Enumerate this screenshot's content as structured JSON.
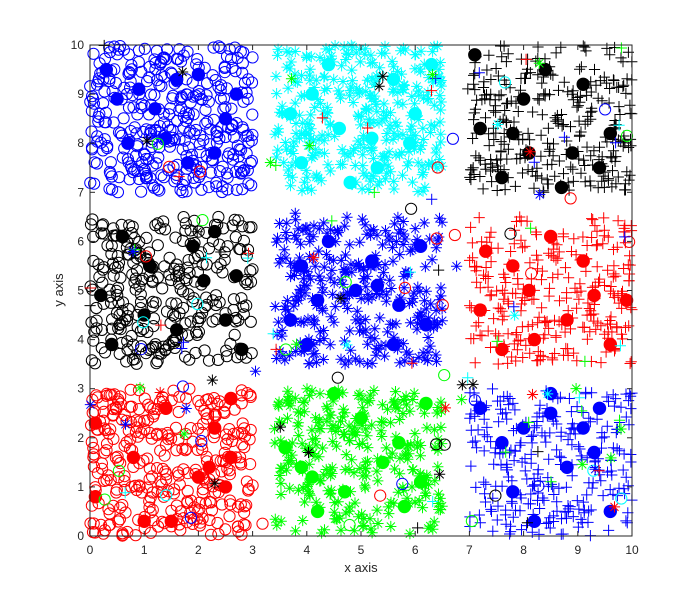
{
  "chart_data": {
    "type": "scatter",
    "xlabel": "x axis",
    "ylabel": "y axis",
    "xlim": [
      0,
      10
    ],
    "ylim": [
      0,
      10
    ],
    "xticks": [
      "0",
      "1",
      "2",
      "3",
      "4",
      "5",
      "6",
      "7",
      "8",
      "9",
      "10"
    ],
    "yticks": [
      "0",
      "1",
      "2",
      "3",
      "4",
      "5",
      "6",
      "7",
      "8",
      "9",
      "10"
    ],
    "grid": false,
    "legend": "none",
    "box": true,
    "colors": {
      "blue": "#0000ff",
      "cyan": "#00ffff",
      "black": "#000000",
      "red": "#ff0000",
      "green": "#00ff00"
    },
    "clusters": [
      {
        "region": {
          "x": [
            0,
            3
          ],
          "y": [
            7,
            10
          ]
        },
        "color": "blue",
        "marker": "circle-open",
        "count": 360,
        "centers": [
          [
            0.3,
            9.5
          ],
          [
            0.7,
            8.0
          ],
          [
            1.2,
            8.7
          ],
          [
            1.8,
            7.6
          ],
          [
            1.6,
            9.3
          ],
          [
            2.5,
            8.5
          ],
          [
            0.9,
            9.1
          ],
          [
            2.0,
            9.4
          ],
          [
            2.3,
            7.8
          ],
          [
            0.5,
            8.9
          ],
          [
            1.4,
            8.1
          ],
          [
            2.7,
            9.0
          ]
        ]
      },
      {
        "region": {
          "x": [
            3.4,
            6.5
          ],
          "y": [
            7,
            10
          ]
        },
        "color": "cyan",
        "marker": "asterisk",
        "count": 330,
        "centers": [
          [
            3.7,
            8.6
          ],
          [
            4.1,
            9.0
          ],
          [
            4.6,
            8.3
          ],
          [
            5.2,
            8.1
          ],
          [
            5.9,
            8.0
          ],
          [
            6.3,
            9.6
          ],
          [
            4.8,
            7.2
          ],
          [
            5.6,
            9.3
          ],
          [
            3.9,
            7.6
          ],
          [
            4.4,
            9.6
          ],
          [
            6.0,
            8.6
          ],
          [
            5.3,
            7.5
          ]
        ]
      },
      {
        "region": {
          "x": [
            7,
            10
          ],
          "y": [
            7,
            10
          ]
        },
        "color": "black",
        "marker": "plus",
        "count": 300,
        "centers": [
          [
            7.2,
            8.3
          ],
          [
            7.8,
            8.2
          ],
          [
            8.1,
            7.8
          ],
          [
            8.9,
            7.8
          ],
          [
            8.7,
            7.1
          ],
          [
            9.1,
            9.2
          ],
          [
            7.1,
            9.8
          ],
          [
            8.4,
            9.5
          ],
          [
            9.6,
            8.2
          ],
          [
            7.6,
            7.3
          ],
          [
            9.4,
            7.5
          ],
          [
            8.0,
            8.9
          ]
        ]
      },
      {
        "region": {
          "x": [
            0,
            3
          ],
          "y": [
            3.5,
            6.5
          ]
        },
        "color": "black",
        "marker": "circle-open",
        "count": 280,
        "centers": [
          [
            0.2,
            4.9
          ],
          [
            1.1,
            5.5
          ],
          [
            2.1,
            5.2
          ],
          [
            2.8,
            3.8
          ],
          [
            2.7,
            5.3
          ],
          [
            0.6,
            6.1
          ],
          [
            1.6,
            4.2
          ],
          [
            0.4,
            3.9
          ],
          [
            2.3,
            6.2
          ],
          [
            1.0,
            4.5
          ],
          [
            1.9,
            5.9
          ],
          [
            2.5,
            4.4
          ]
        ]
      },
      {
        "region": {
          "x": [
            3.4,
            6.5
          ],
          "y": [
            3.5,
            6.5
          ]
        },
        "color": "blue",
        "marker": "asterisk",
        "count": 300,
        "centers": [
          [
            3.7,
            4.4
          ],
          [
            4.2,
            4.8
          ],
          [
            4.9,
            5.0
          ],
          [
            5.3,
            5.1
          ],
          [
            5.7,
            4.7
          ],
          [
            6.1,
            5.9
          ],
          [
            5.2,
            5.6
          ],
          [
            4.4,
            6.0
          ],
          [
            4.0,
            3.9
          ],
          [
            5.6,
            3.9
          ],
          [
            3.9,
            5.5
          ],
          [
            6.2,
            4.3
          ]
        ]
      },
      {
        "region": {
          "x": [
            7,
            10
          ],
          "y": [
            3.5,
            6.5
          ]
        },
        "color": "red",
        "marker": "plus",
        "count": 270,
        "centers": [
          [
            7.3,
            5.8
          ],
          [
            7.8,
            5.5
          ],
          [
            8.2,
            4.0
          ],
          [
            9.1,
            5.6
          ],
          [
            9.3,
            4.9
          ],
          [
            9.9,
            4.8
          ],
          [
            7.2,
            4.6
          ],
          [
            8.5,
            6.1
          ],
          [
            8.8,
            4.4
          ],
          [
            7.6,
            3.8
          ],
          [
            9.6,
            3.9
          ],
          [
            8.1,
            5.0
          ]
        ]
      },
      {
        "region": {
          "x": [
            0,
            3
          ],
          "y": [
            0,
            3
          ]
        },
        "color": "red",
        "marker": "circle-open",
        "count": 320,
        "centers": [
          [
            0.1,
            2.3
          ],
          [
            0.1,
            0.8
          ],
          [
            1.0,
            0.3
          ],
          [
            1.5,
            0.3
          ],
          [
            2.0,
            1.2
          ],
          [
            2.2,
            1.4
          ],
          [
            2.3,
            2.2
          ],
          [
            2.6,
            1.6
          ],
          [
            2.6,
            2.8
          ],
          [
            2.5,
            1.0
          ],
          [
            0.8,
            1.6
          ],
          [
            1.4,
            2.6
          ]
        ]
      },
      {
        "region": {
          "x": [
            3.4,
            6.5
          ],
          "y": [
            0,
            3
          ]
        },
        "color": "green",
        "marker": "asterisk",
        "count": 280,
        "centers": [
          [
            3.6,
            1.8
          ],
          [
            3.9,
            1.4
          ],
          [
            4.1,
            1.2
          ],
          [
            4.5,
            2.9
          ],
          [
            5.0,
            2.4
          ],
          [
            5.7,
            1.9
          ],
          [
            6.2,
            2.7
          ],
          [
            4.7,
            0.9
          ],
          [
            5.4,
            1.5
          ],
          [
            5.8,
            0.6
          ],
          [
            4.2,
            0.5
          ],
          [
            6.1,
            1.1
          ]
        ]
      },
      {
        "region": {
          "x": [
            7,
            10
          ],
          "y": [
            0,
            3
          ]
        },
        "color": "blue",
        "marker": "plus",
        "count": 270,
        "centers": [
          [
            7.6,
            1.9
          ],
          [
            8.2,
            0.3
          ],
          [
            8.5,
            2.9
          ],
          [
            8.5,
            2.5
          ],
          [
            9.1,
            2.2
          ],
          [
            9.4,
            2.6
          ],
          [
            9.6,
            0.5
          ],
          [
            7.2,
            2.6
          ],
          [
            8.8,
            1.4
          ],
          [
            7.8,
            0.9
          ],
          [
            9.3,
            1.7
          ],
          [
            8.0,
            2.2
          ]
        ]
      }
    ],
    "outliers": {
      "count": 150,
      "colors": [
        "red",
        "green",
        "cyan",
        "black",
        "blue"
      ],
      "markers": [
        "circle-open",
        "plus",
        "asterisk"
      ]
    }
  }
}
